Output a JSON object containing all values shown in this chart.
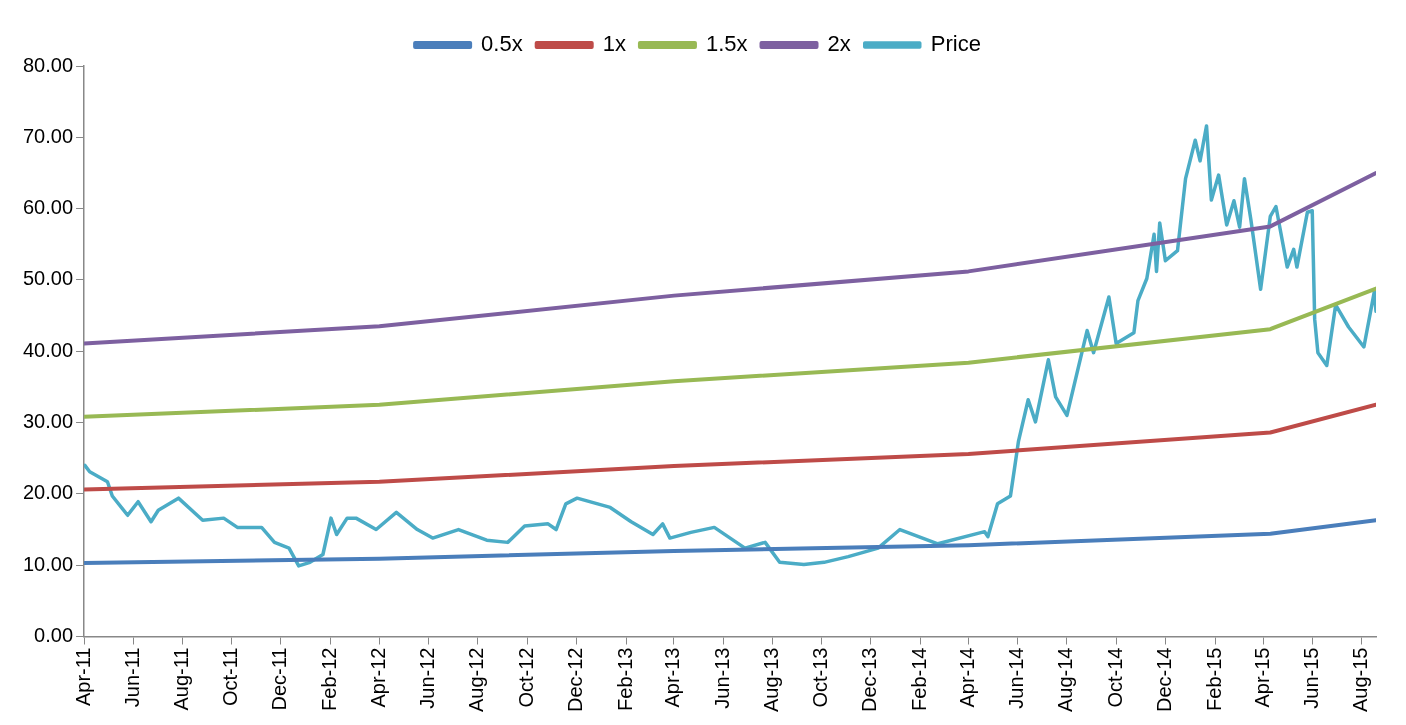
{
  "chart_data": {
    "type": "line",
    "legend": "top",
    "grid": false,
    "marker": "none",
    "line_style": "solid",
    "xlim": [
      "2011-04-01",
      "2015-08-19"
    ],
    "xticks": [
      {
        "value": "2011-04",
        "label": "Apr-11"
      },
      {
        "value": "2011-06",
        "label": "Jun-11"
      },
      {
        "value": "2011-08",
        "label": "Aug-11"
      },
      {
        "value": "2011-10",
        "label": "Oct-11"
      },
      {
        "value": "2011-12",
        "label": "Dec-11"
      },
      {
        "value": "2012-02",
        "label": "Feb-12"
      },
      {
        "value": "2012-04",
        "label": "Apr-12"
      },
      {
        "value": "2012-06",
        "label": "Jun-12"
      },
      {
        "value": "2012-08",
        "label": "Aug-12"
      },
      {
        "value": "2012-10",
        "label": "Oct-12"
      },
      {
        "value": "2012-12",
        "label": "Dec-12"
      },
      {
        "value": "2013-02",
        "label": "Feb-13"
      },
      {
        "value": "2013-04",
        "label": "Apr-13"
      },
      {
        "value": "2013-06",
        "label": "Jun-13"
      },
      {
        "value": "2013-08",
        "label": "Aug-13"
      },
      {
        "value": "2013-10",
        "label": "Oct-13"
      },
      {
        "value": "2013-12",
        "label": "Dec-13"
      },
      {
        "value": "2014-02",
        "label": "Feb-14"
      },
      {
        "value": "2014-04",
        "label": "Apr-14"
      },
      {
        "value": "2014-06",
        "label": "Jun-14"
      },
      {
        "value": "2014-08",
        "label": "Aug-14"
      },
      {
        "value": "2014-10",
        "label": "Oct-14"
      },
      {
        "value": "2014-12",
        "label": "Dec-14"
      },
      {
        "value": "2015-02",
        "label": "Feb-15"
      },
      {
        "value": "2015-04",
        "label": "Apr-15"
      },
      {
        "value": "2015-06",
        "label": "Jun-15"
      },
      {
        "value": "2015-08",
        "label": "Aug-15"
      }
    ],
    "ylim": [
      0,
      80
    ],
    "yticks": [
      {
        "value": 0,
        "label": "0.00"
      },
      {
        "value": 10,
        "label": "10.00"
      },
      {
        "value": 20,
        "label": "20.00"
      },
      {
        "value": 30,
        "label": "30.00"
      },
      {
        "value": 40,
        "label": "40.00"
      },
      {
        "value": 50,
        "label": "50.00"
      },
      {
        "value": 60,
        "label": "60.00"
      },
      {
        "value": 70,
        "label": "70.00"
      },
      {
        "value": 80,
        "label": "80.00"
      }
    ],
    "x": [
      "2011-04-01",
      "2012-04-01",
      "2013-04-01",
      "2014-04-01",
      "2015-04-10",
      "2015-08-19"
    ],
    "series": [
      {
        "name": "0.5x",
        "color": "#4a7ebb",
        "values": [
          10.3,
          10.9,
          12.0,
          12.8,
          14.4,
          16.3
        ]
      },
      {
        "name": "1x",
        "color": "#be4b48",
        "values": [
          20.6,
          21.7,
          23.9,
          25.6,
          28.6,
          32.5
        ]
      },
      {
        "name": "1.5x",
        "color": "#98b954",
        "values": [
          30.8,
          32.5,
          35.8,
          38.4,
          43.1,
          48.8
        ]
      },
      {
        "name": "2x",
        "color": "#7d60a0",
        "values": [
          41.1,
          43.5,
          47.8,
          51.2,
          57.5,
          65.0
        ]
      },
      {
        "name": "Price",
        "color": "#4bacc6",
        "x": [
          "2011-04-02",
          "2011-04-08",
          "2011-04-30",
          "2011-05-06",
          "2011-05-25",
          "2011-06-07",
          "2011-06-23",
          "2011-07-02",
          "2011-07-27",
          "2011-08-26",
          "2011-09-21",
          "2011-10-08",
          "2011-11-07",
          "2011-11-23",
          "2011-12-11",
          "2011-12-23",
          "2012-01-06",
          "2012-01-22",
          "2012-02-01",
          "2012-02-08",
          "2012-02-21",
          "2012-03-03",
          "2012-03-28",
          "2012-04-22",
          "2012-05-18",
          "2012-06-06",
          "2012-07-08",
          "2012-08-12",
          "2012-09-07",
          "2012-09-28",
          "2012-10-27",
          "2012-11-06",
          "2012-11-18",
          "2012-12-02",
          "2013-01-12",
          "2013-02-07",
          "2013-03-06",
          "2013-03-18",
          "2013-03-27",
          "2013-04-22",
          "2013-05-21",
          "2013-06-28",
          "2013-07-23",
          "2013-08-10",
          "2013-09-09",
          "2013-10-04",
          "2013-11-03",
          "2013-12-10",
          "2014-01-06",
          "2014-02-22",
          "2014-04-21",
          "2014-04-25",
          "2014-05-07",
          "2014-05-23",
          "2014-06-02",
          "2014-06-14",
          "2014-06-23",
          "2014-07-09",
          "2014-07-18",
          "2014-08-01",
          "2014-08-26",
          "2014-09-03",
          "2014-09-22",
          "2014-10-01",
          "2014-10-23",
          "2014-10-28",
          "2014-11-08",
          "2014-11-17",
          "2014-11-20",
          "2014-11-24",
          "2014-12-01",
          "2014-12-16",
          "2014-12-26",
          "2015-01-07",
          "2015-01-13",
          "2015-01-21",
          "2015-01-27",
          "2015-02-05",
          "2015-02-15",
          "2015-02-24",
          "2015-03-03",
          "2015-03-09",
          "2015-03-17",
          "2015-03-29",
          "2015-04-10",
          "2015-04-17",
          "2015-05-01",
          "2015-05-09",
          "2015-05-13",
          "2015-05-26",
          "2015-06-01",
          "2015-06-04",
          "2015-06-08",
          "2015-06-19",
          "2015-06-30",
          "2015-07-16",
          "2015-08-04",
          "2015-08-17",
          "2015-08-19"
        ],
        "values": [
          24.0,
          23.1,
          21.7,
          19.7,
          17.0,
          18.9,
          16.1,
          17.7,
          19.4,
          16.3,
          16.6,
          15.3,
          15.3,
          13.2,
          12.4,
          9.9,
          10.4,
          11.5,
          16.6,
          14.3,
          16.6,
          16.6,
          15.0,
          17.4,
          15.0,
          13.8,
          15.0,
          13.5,
          13.2,
          15.5,
          15.8,
          15.0,
          18.6,
          19.4,
          18.1,
          16.1,
          14.3,
          15.8,
          13.8,
          14.6,
          15.3,
          12.4,
          13.2,
          10.4,
          10.1,
          10.4,
          11.2,
          12.4,
          15.0,
          13.0,
          14.7,
          14.0,
          18.6,
          19.7,
          27.4,
          33.2,
          30.1,
          38.8,
          33.6,
          31.0,
          42.9,
          39.8,
          47.6,
          41.1,
          42.6,
          47.1,
          50.2,
          56.4,
          51.2,
          58.0,
          52.7,
          54.1,
          64.2,
          69.6,
          66.7,
          71.6,
          61.2,
          64.7,
          57.7,
          61.1,
          57.4,
          64.2,
          58.4,
          48.7,
          58.9,
          60.3,
          51.8,
          54.3,
          51.8,
          59.5,
          59.7,
          44.5,
          39.8,
          38.0,
          46.5,
          43.4,
          40.6,
          48.4,
          45.6
        ]
      }
    ]
  }
}
